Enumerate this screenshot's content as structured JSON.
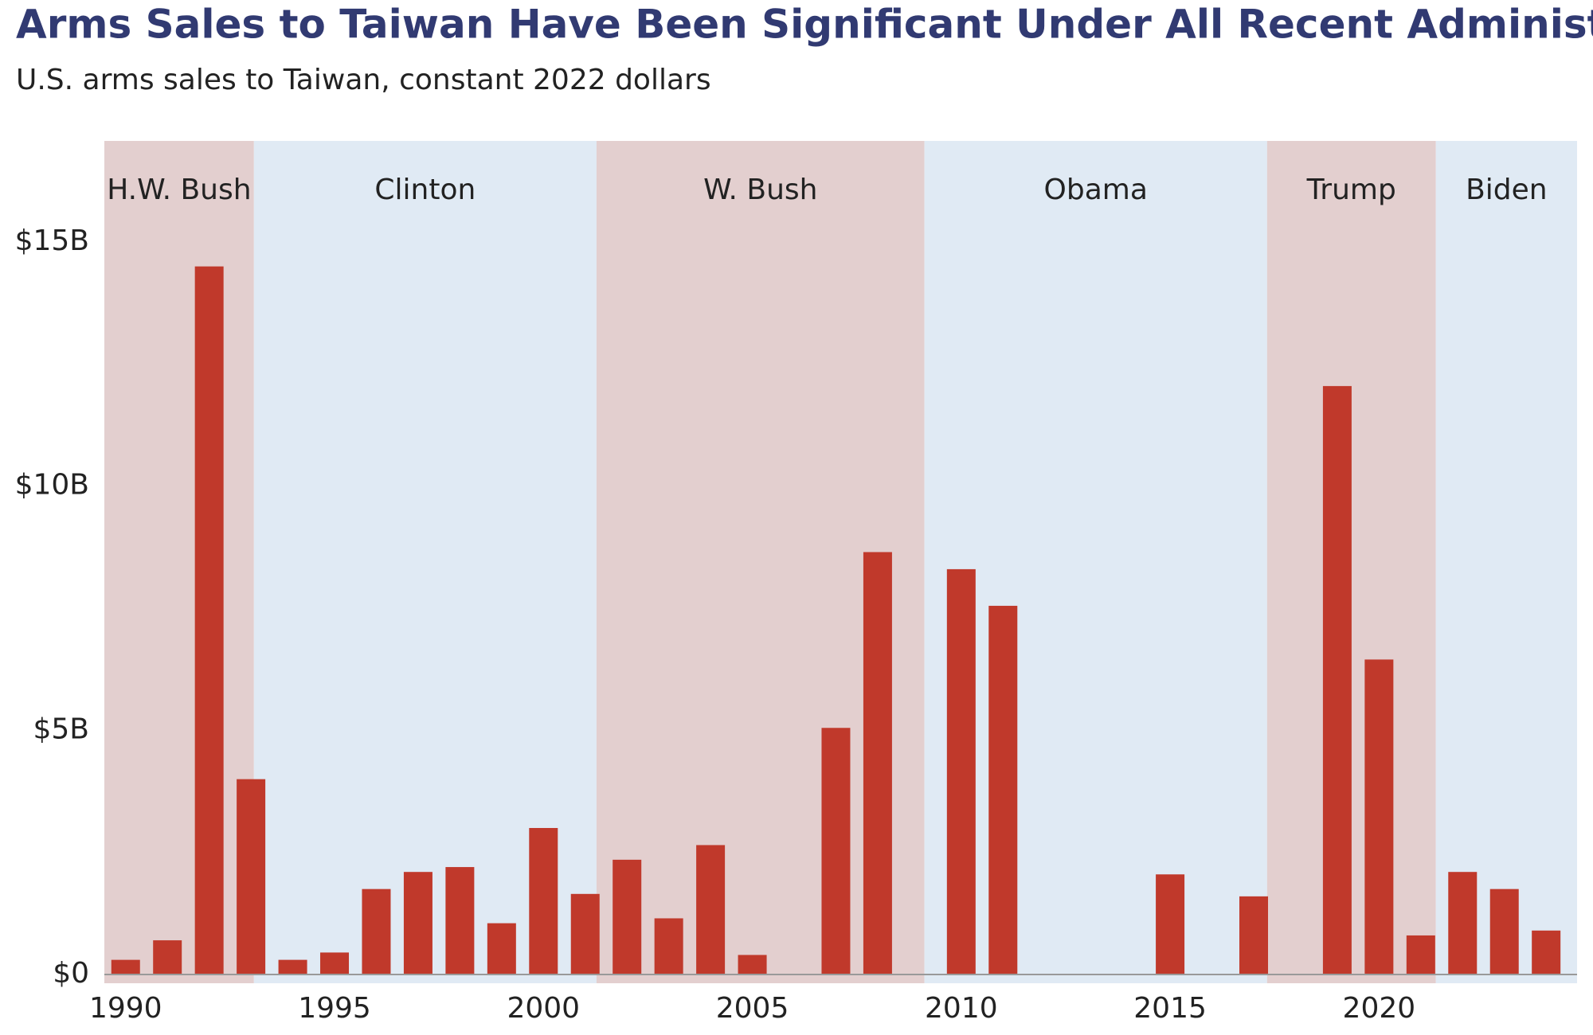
{
  "chart_data": {
    "type": "bar",
    "title": "Arms Sales to Taiwan Have Been Significant Under All Recent Administrations",
    "subtitle": "U.S. arms sales to Taiwan, constant 2022 dollars",
    "x": [
      1990,
      1991,
      1992,
      1993,
      1994,
      1995,
      1996,
      1997,
      1998,
      1999,
      2000,
      2001,
      2002,
      2003,
      2004,
      2005,
      2006,
      2007,
      2008,
      2009,
      2010,
      2011,
      2012,
      2013,
      2014,
      2015,
      2016,
      2017,
      2018,
      2019,
      2020,
      2021,
      2022,
      2023,
      2024
    ],
    "values": [
      0.3,
      0.7,
      14.5,
      4.0,
      0.3,
      0.45,
      1.75,
      2.1,
      2.2,
      1.05,
      3.0,
      1.65,
      2.35,
      1.15,
      2.65,
      0.4,
      0,
      5.05,
      8.65,
      0,
      8.3,
      7.55,
      0,
      0,
      0,
      2.05,
      0,
      1.6,
      0,
      12.05,
      6.45,
      0.8,
      2.1,
      1.75,
      0.9
    ],
    "color": "#c0392b",
    "xlim": [
      1989.49,
      2024.74
    ],
    "xticks": [
      1990,
      1995,
      2000,
      2005,
      2010,
      2015,
      2020
    ],
    "ylim": [
      0,
      17.07
    ],
    "yticks": [
      {
        "value": 0,
        "label": "$0"
      },
      {
        "value": 5,
        "label": "$5B"
      },
      {
        "value": 10,
        "label": "$10B"
      },
      {
        "value": 15,
        "label": "$15B"
      }
    ],
    "administrations": [
      {
        "name": "H.W. Bush",
        "start": 1989.49,
        "end": 1993.07,
        "color": "#e3cfcf"
      },
      {
        "name": "Clinton",
        "start": 1993.07,
        "end": 2001.27,
        "color": "#e0eaf4"
      },
      {
        "name": "W. Bush",
        "start": 2001.27,
        "end": 2009.12,
        "color": "#e3cfcf"
      },
      {
        "name": "Obama",
        "start": 2009.12,
        "end": 2017.32,
        "color": "#e0eaf4"
      },
      {
        "name": "Trump",
        "start": 2017.32,
        "end": 2021.36,
        "color": "#e3cfcf"
      },
      {
        "name": "Biden",
        "start": 2021.36,
        "end": 2024.74,
        "color": "#e0eaf4"
      }
    ]
  }
}
